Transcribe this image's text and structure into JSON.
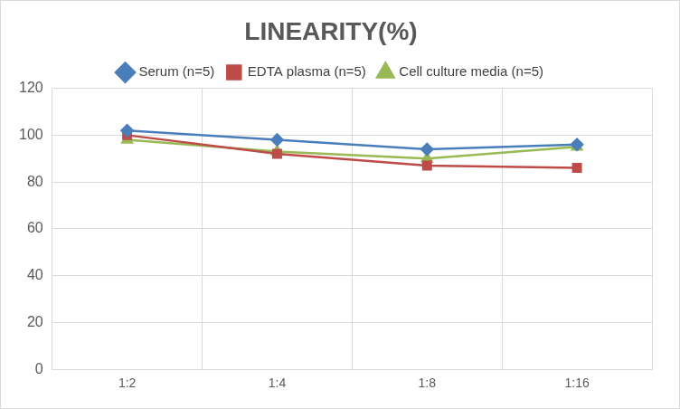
{
  "chart_data": {
    "type": "line",
    "title": "LINEARITY(%)",
    "categories": [
      "1:2",
      "1:4",
      "1:8",
      "1:16"
    ],
    "series": [
      {
        "name": "Serum (n=5)",
        "color": "#4a7ebb",
        "marker": "diamond",
        "values": [
          102,
          98,
          94,
          96
        ]
      },
      {
        "name": "EDTA plasma (n=5)",
        "color": "#be4b48",
        "marker": "square",
        "values": [
          100,
          92,
          87,
          86
        ]
      },
      {
        "name": "Cell culture media (n=5)",
        "color": "#98b954",
        "marker": "triangle",
        "values": [
          98,
          93,
          90,
          95
        ]
      }
    ],
    "ylim": [
      0,
      120
    ],
    "yticks": [
      0,
      20,
      40,
      60,
      80,
      100,
      120
    ],
    "grid": true,
    "legend": "top"
  }
}
